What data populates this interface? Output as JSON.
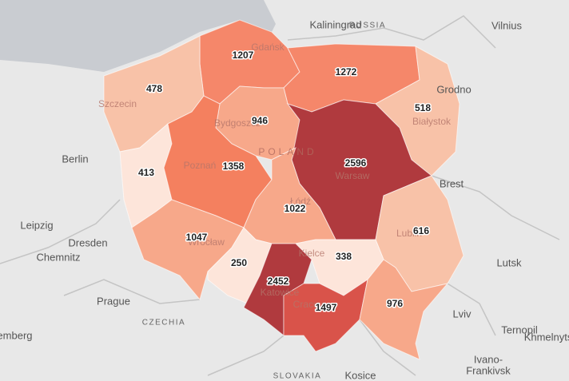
{
  "places": [
    {
      "label": "Kaliningrad",
      "kind": "city"
    },
    {
      "label": "RUSSIA",
      "kind": "country"
    },
    {
      "label": "Vilnius",
      "kind": "city"
    },
    {
      "label": "Gdańsk",
      "kind": "inner"
    },
    {
      "label": "Szczecin",
      "kind": "inner"
    },
    {
      "label": "Grodno",
      "kind": "city"
    },
    {
      "label": "Bydgoszcz",
      "kind": "inner"
    },
    {
      "label": "Białystok",
      "kind": "inner"
    },
    {
      "label": "POLAND",
      "kind": "inner-country"
    },
    {
      "label": "Berlin",
      "kind": "city"
    },
    {
      "label": "Poznań",
      "kind": "inner"
    },
    {
      "label": "Warsaw",
      "kind": "inner"
    },
    {
      "label": "Brest",
      "kind": "city"
    },
    {
      "label": "Łódź",
      "kind": "inner"
    },
    {
      "label": "Leipzig",
      "kind": "city"
    },
    {
      "label": "Dresden",
      "kind": "city"
    },
    {
      "label": "Chemnitz",
      "kind": "city"
    },
    {
      "label": "Wrocław",
      "kind": "inner"
    },
    {
      "label": "Lublin",
      "kind": "inner"
    },
    {
      "label": "Kielce",
      "kind": "inner"
    },
    {
      "label": "Lutsk",
      "kind": "city"
    },
    {
      "label": "Prague",
      "kind": "city"
    },
    {
      "label": "Katowice",
      "kind": "inner"
    },
    {
      "label": "Cracow",
      "kind": "inner"
    },
    {
      "label": "CZECHIA",
      "kind": "country"
    },
    {
      "label": "Lviv",
      "kind": "city"
    },
    {
      "label": "Ternopil",
      "kind": "city"
    },
    {
      "label": "Khmelnytskyi",
      "kind": "city"
    },
    {
      "label": "Nuremberg",
      "kind": "city"
    },
    {
      "label": "Ivano-",
      "kind": "city"
    },
    {
      "label": "Frankivsk",
      "kind": "city"
    },
    {
      "label": "SLOVAKIA",
      "kind": "country"
    },
    {
      "label": "Kosice",
      "kind": "city"
    }
  ],
  "regions": [
    {
      "value": 1207,
      "color": "#f5876a"
    },
    {
      "value": 1272,
      "color": "#f5876a"
    },
    {
      "value": 478,
      "color": "#f8c2a8"
    },
    {
      "value": 946,
      "color": "#f7a88a"
    },
    {
      "value": 518,
      "color": "#f8c2a8"
    },
    {
      "value": 413,
      "color": "#fde5da"
    },
    {
      "value": 1358,
      "color": "#f4805f"
    },
    {
      "value": 2596,
      "color": "#b03a3e"
    },
    {
      "value": 1022,
      "color": "#f7a88a"
    },
    {
      "value": 1047,
      "color": "#f7a88a"
    },
    {
      "value": 616,
      "color": "#f8c2a8"
    },
    {
      "value": 250,
      "color": "#fde5da"
    },
    {
      "value": 338,
      "color": "#fde5da"
    },
    {
      "value": 2452,
      "color": "#b03a3e"
    },
    {
      "value": 1497,
      "color": "#d9534a"
    },
    {
      "value": 976,
      "color": "#f7a88a"
    }
  ]
}
